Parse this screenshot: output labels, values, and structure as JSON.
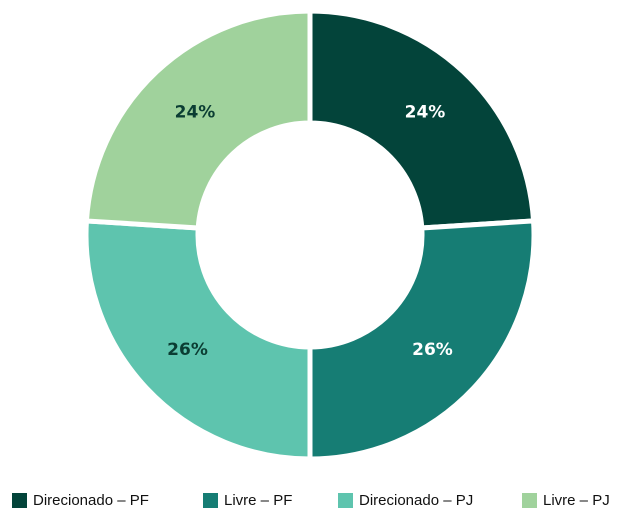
{
  "chart_data": {
    "type": "pie",
    "categories": [
      "Direcionado – PF",
      "Livre – PF",
      "Direcionado – PJ",
      "Livre – PJ"
    ],
    "values": [
      24,
      26,
      26,
      24
    ],
    "value_labels": [
      "24%",
      "26%",
      "26%",
      "24%"
    ],
    "colors": [
      "#03443a",
      "#167d74",
      "#5ec4ae",
      "#a0d29c"
    ],
    "label_colors": [
      "#ffffff",
      "#ffffff",
      "#0b3d33",
      "#0b3d33"
    ],
    "donut": true,
    "legend": "bottom"
  }
}
